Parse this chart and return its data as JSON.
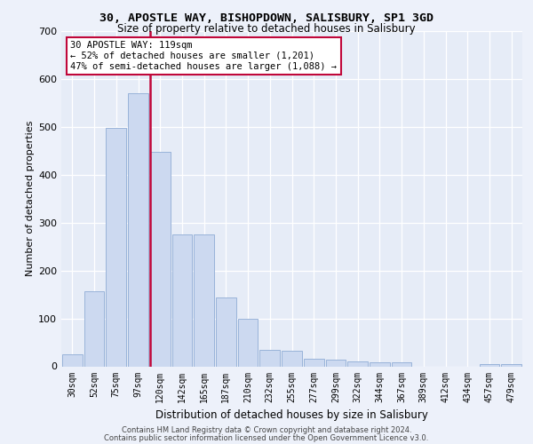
{
  "title_line1": "30, APOSTLE WAY, BISHOPDOWN, SALISBURY, SP1 3GD",
  "title_line2": "Size of property relative to detached houses in Salisbury",
  "xlabel": "Distribution of detached houses by size in Salisbury",
  "ylabel": "Number of detached properties",
  "categories": [
    "30sqm",
    "52sqm",
    "75sqm",
    "97sqm",
    "120sqm",
    "142sqm",
    "165sqm",
    "187sqm",
    "210sqm",
    "232sqm",
    "255sqm",
    "277sqm",
    "299sqm",
    "322sqm",
    "344sqm",
    "367sqm",
    "389sqm",
    "412sqm",
    "434sqm",
    "457sqm",
    "479sqm"
  ],
  "values": [
    25,
    157,
    498,
    570,
    447,
    275,
    275,
    143,
    99,
    35,
    33,
    15,
    14,
    11,
    8,
    8,
    0,
    0,
    0,
    5,
    5
  ],
  "bar_color": "#ccd9f0",
  "bar_edge_color": "#99b3d9",
  "red_line_bar_index": 4,
  "highlight_color": "#c0073a",
  "annotation_text": "30 APOSTLE WAY: 119sqm\n← 52% of detached houses are smaller (1,201)\n47% of semi-detached houses are larger (1,088) →",
  "ylim": [
    0,
    700
  ],
  "yticks": [
    0,
    100,
    200,
    300,
    400,
    500,
    600,
    700
  ],
  "footer_line1": "Contains HM Land Registry data © Crown copyright and database right 2024.",
  "footer_line2": "Contains public sector information licensed under the Open Government Licence v3.0.",
  "bg_color": "#edf1fa",
  "plot_bg_color": "#e6ecf7"
}
